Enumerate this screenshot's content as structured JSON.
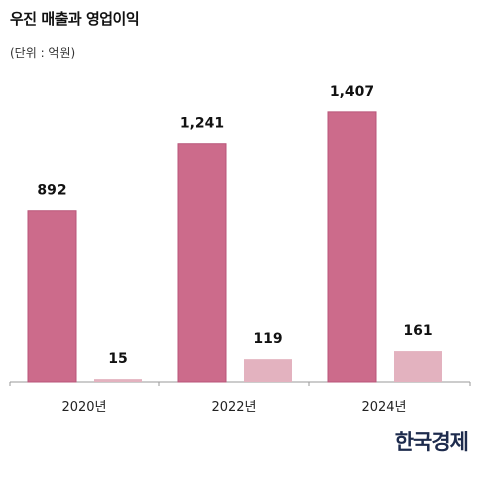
{
  "header": {
    "title": "우진 매출과 영업이익",
    "unit": "(단위 : 억원)"
  },
  "brand": {
    "logo_text": "한국경제"
  },
  "colors": {
    "revenue": "#cc6b8b",
    "revenue_stroke": "#b9567a",
    "profit": "#e3b2bf",
    "axis": "#999999"
  },
  "chart_data": {
    "type": "bar",
    "categories": [
      "2020년",
      "2022년",
      "2024년"
    ],
    "series": [
      {
        "values": [
          892,
          1241,
          1407
        ]
      },
      {
        "values": [
          15,
          119,
          161
        ]
      }
    ],
    "data_labels": [
      [
        "892",
        "1,241",
        "1,407"
      ],
      [
        "15",
        "119",
        "161"
      ]
    ],
    "ylim": [
      0,
      1500
    ],
    "grid": false,
    "legend": "none"
  }
}
